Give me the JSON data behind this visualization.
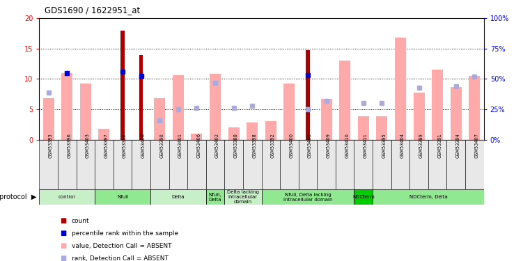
{
  "title": "GDS1690 / 1622951_at",
  "samples": [
    "GSM53393",
    "GSM53396",
    "GSM53403",
    "GSM53397",
    "GSM53399",
    "GSM53408",
    "GSM53390",
    "GSM53401",
    "GSM53406",
    "GSM53402",
    "GSM53388",
    "GSM53398",
    "GSM53392",
    "GSM53400",
    "GSM53405",
    "GSM53409",
    "GSM53410",
    "GSM53411",
    "GSM53395",
    "GSM53404",
    "GSM53389",
    "GSM53391",
    "GSM53394",
    "GSM53407"
  ],
  "count_values": [
    0,
    0,
    0,
    0,
    18,
    14,
    0,
    0,
    0,
    0,
    0,
    0,
    0,
    0,
    14.7,
    0,
    0,
    0,
    0,
    0,
    0,
    0,
    0,
    0
  ],
  "percentile_values": [
    0,
    11,
    0,
    0,
    11.2,
    10.5,
    0,
    0,
    0,
    0,
    0,
    0,
    0,
    0,
    10.6,
    0,
    0,
    0,
    0,
    0,
    0,
    0,
    0,
    0
  ],
  "value_absent": [
    6.8,
    11.0,
    9.3,
    1.8,
    0,
    0,
    6.8,
    10.6,
    1.0,
    10.8,
    2.0,
    2.8,
    3.0,
    9.3,
    0,
    6.7,
    13.0,
    3.8,
    3.8,
    16.8,
    7.8,
    11.5,
    8.7,
    10.5
  ],
  "rank_absent_pct": [
    39,
    0,
    0,
    0,
    0,
    0,
    16,
    25,
    26,
    47,
    26,
    28,
    0,
    0,
    25,
    32,
    0,
    30,
    30,
    0,
    43,
    0,
    44,
    52
  ],
  "groups": [
    {
      "label": "control",
      "start": 0,
      "end": 3,
      "color": "#c8f0c8"
    },
    {
      "label": "Nfull",
      "start": 3,
      "end": 6,
      "color": "#90e890"
    },
    {
      "label": "Delta",
      "start": 6,
      "end": 9,
      "color": "#c8f0c8"
    },
    {
      "label": "Nfull,\nDelta",
      "start": 9,
      "end": 10,
      "color": "#90e890"
    },
    {
      "label": "Delta lacking\nintracellular\ndomain",
      "start": 10,
      "end": 12,
      "color": "#c8f0c8"
    },
    {
      "label": "Nfull, Delta lacking\nintracellular domain",
      "start": 12,
      "end": 17,
      "color": "#90e890"
    },
    {
      "label": "NDCterm",
      "start": 17,
      "end": 18,
      "color": "#00cc00"
    },
    {
      "label": "NDCterm, Delta",
      "start": 18,
      "end": 24,
      "color": "#90e890"
    }
  ],
  "ylim": [
    0,
    20
  ],
  "y2lim": [
    0,
    100
  ],
  "yticks": [
    0,
    5,
    10,
    15,
    20
  ],
  "y2ticks": [
    0,
    25,
    50,
    75,
    100
  ],
  "count_color": "#aa0000",
  "percentile_color": "#0000cc",
  "value_absent_color": "#ffaaaa",
  "rank_absent_color": "#aaaadd",
  "bg_color": "#ffffff"
}
